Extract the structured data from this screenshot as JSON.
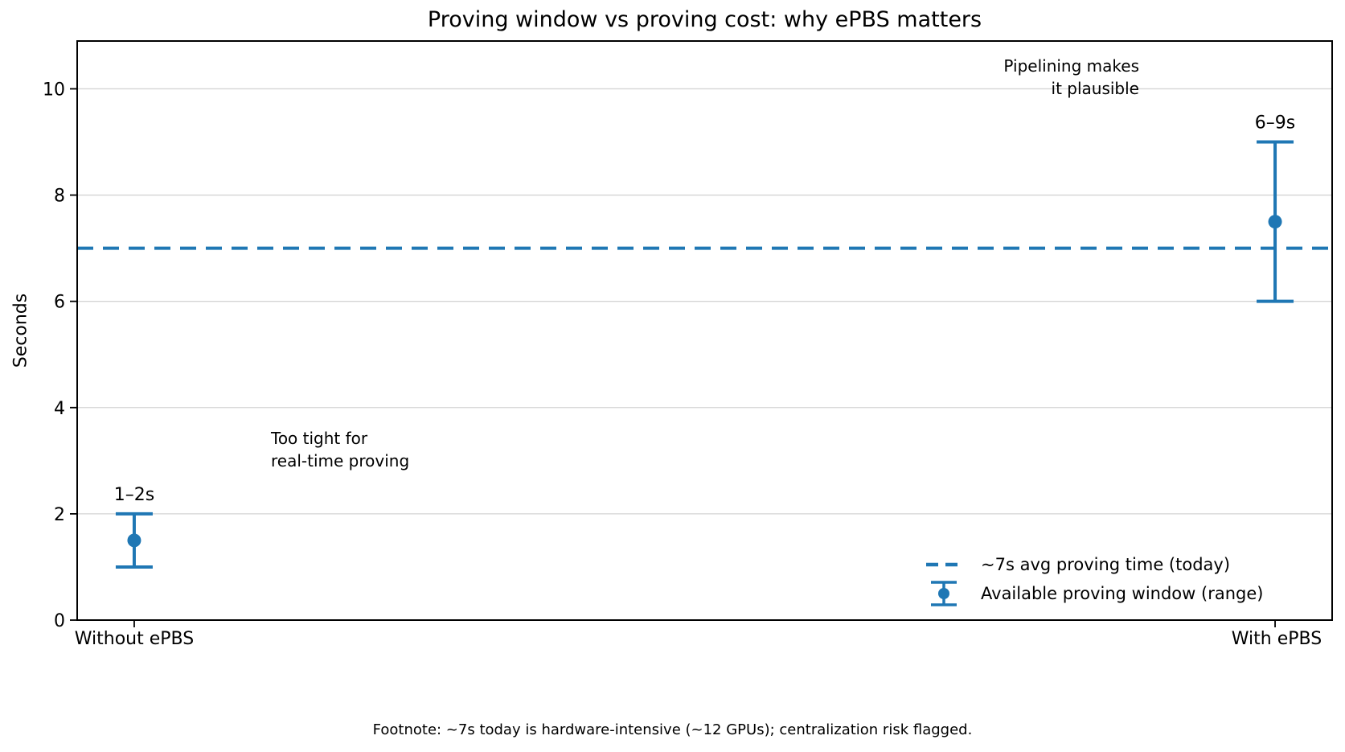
{
  "chart_data": {
    "type": "errorbar",
    "title": "Proving window vs proving cost: why ePBS matters",
    "ylabel": "Seconds",
    "xlabel": "",
    "categories": [
      "Without ePBS",
      "With ePBS"
    ],
    "points": [
      {
        "category": "Without ePBS",
        "center": 1.5,
        "low": 1,
        "high": 2,
        "label": "1–2s"
      },
      {
        "category": "With ePBS",
        "center": 7.5,
        "low": 6,
        "high": 9,
        "label": "6–9s"
      }
    ],
    "reference_line": {
      "y": 7,
      "style": "dashed",
      "label": "~7s avg proving time (today)"
    },
    "ylim": [
      0,
      10.9
    ],
    "yticks": [
      0,
      2,
      4,
      6,
      8,
      10
    ],
    "grid": true,
    "legend": {
      "position": "lower right",
      "entries": [
        {
          "type": "dashed-line",
          "label": "~7s avg proving time (today)"
        },
        {
          "type": "errorbar",
          "label": "Available proving window (range)"
        }
      ]
    },
    "annotations": [
      {
        "text": "Too tight for\nreal-time proving",
        "align": "left"
      },
      {
        "text": "Pipelining makes\nit plausible",
        "align": "right"
      }
    ],
    "colors": {
      "accent": "#1f77b4",
      "grid": "#d4d4d4",
      "axis": "#000000",
      "text": "#000000"
    },
    "footnote": "Footnote: ~7s today is hardware-intensive (~12 GPUs); centralization risk flagged."
  }
}
